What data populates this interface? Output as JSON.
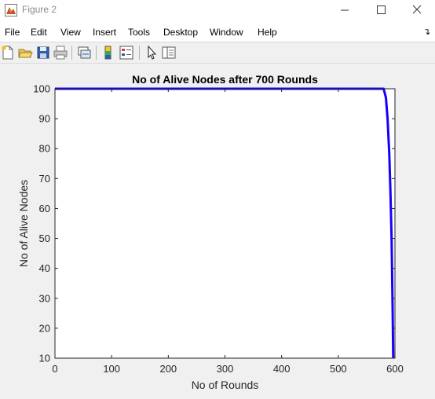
{
  "window": {
    "title": "Figure 2"
  },
  "menu": [
    "File",
    "Edit",
    "View",
    "Insert",
    "Tools",
    "Desktop",
    "Window",
    "Help"
  ],
  "toolbar": [
    "new-figure-icon",
    "open-file-icon",
    "save-icon",
    "print-icon",
    "link-plot-icon",
    "insert-colorbar-icon",
    "insert-legend-icon",
    "edit-plot-icon",
    "property-inspector-icon"
  ],
  "colors": {
    "line": "#1500ff",
    "axes_bg": "#ffffff",
    "figure_bg": "#f0f0f0"
  },
  "chart_data": {
    "type": "line",
    "title": "No of Alive Nodes after 700 Rounds",
    "xlabel": "No of Rounds",
    "ylabel": "No of Alive Nodes",
    "xlim": [
      0,
      600
    ],
    "ylim": [
      10,
      100
    ],
    "xticks": [
      "0",
      "100",
      "200",
      "300",
      "400",
      "500",
      "600"
    ],
    "yticks": [
      "10",
      "20",
      "30",
      "40",
      "50",
      "60",
      "70",
      "80",
      "90",
      "100"
    ],
    "grid": false,
    "series": [
      {
        "x": [
          0,
          580,
          584,
          587,
          590,
          592,
          594,
          595,
          596,
          597
        ],
        "y": [
          100,
          100,
          97,
          90,
          78,
          66,
          50,
          38,
          25,
          10
        ]
      }
    ]
  }
}
